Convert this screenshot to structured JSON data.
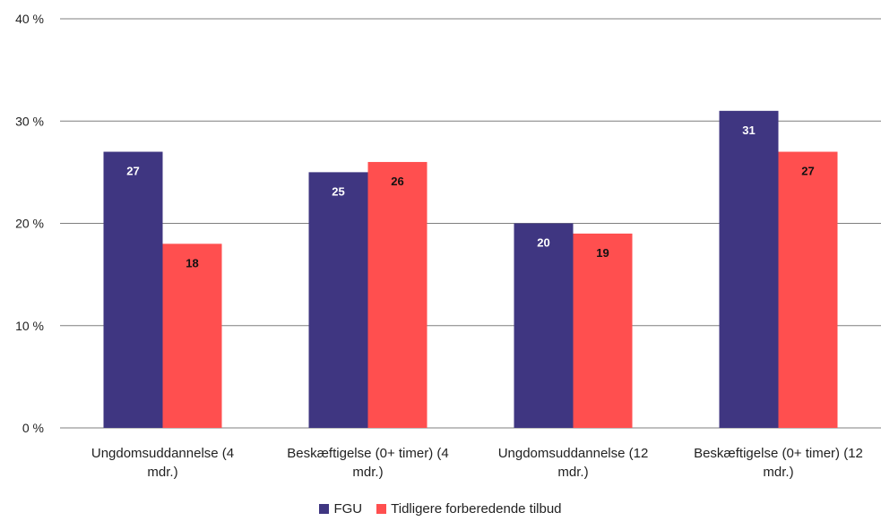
{
  "chart_data": {
    "type": "bar",
    "title": "",
    "xlabel": "",
    "ylabel": "",
    "categories": [
      "Ungdomsuddannelse (4 mdr.)",
      "Beskæftigelse (0+ timer) (4 mdr.)",
      "Ungdomsuddannelse (12 mdr.)",
      "Beskæftigelse (0+ timer) (12 mdr.)"
    ],
    "category_lines": [
      [
        "Ungdomsuddannelse (4",
        "mdr.)"
      ],
      [
        "Beskæftigelse (0+ timer) (4",
        "mdr.)"
      ],
      [
        "Ungdomsuddannelse (12",
        "mdr.)"
      ],
      [
        "Beskæftigelse (0+ timer) (12",
        "mdr.)"
      ]
    ],
    "series": [
      {
        "name": "FGU",
        "values": [
          27,
          25,
          20,
          31
        ],
        "color": "#3F3681"
      },
      {
        "name": "Tidligere forberedende tilbud",
        "values": [
          18,
          26,
          19,
          27
        ],
        "color": "#FF4F4F"
      }
    ],
    "ylim": [
      0,
      40
    ],
    "yticks": [
      0,
      10,
      20,
      30,
      40
    ],
    "ytick_labels": [
      "0 %",
      "10 %",
      "20 %",
      "30 %",
      "40 %"
    ],
    "grid": true,
    "legend_position": "bottom"
  }
}
